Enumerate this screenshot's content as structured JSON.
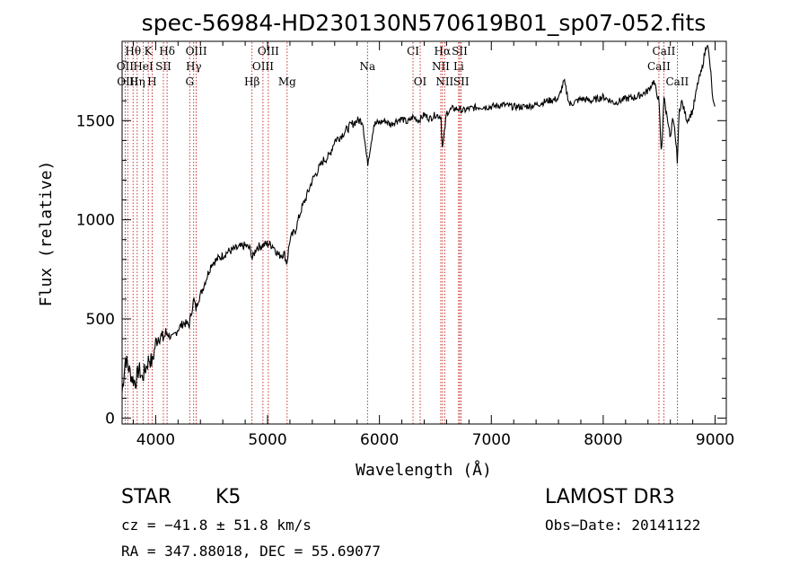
{
  "chart_data": {
    "type": "line",
    "title": "spec-56984-HD230130N570619B01_sp07-052.fits",
    "xlabel": "Wavelength (Å)",
    "ylabel": "Flux (relative)",
    "xlim": [
      3700,
      9100
    ],
    "ylim": [
      -30,
      1900
    ],
    "xticks": [
      4000,
      5000,
      6000,
      7000,
      8000,
      9000
    ],
    "yticks": [
      0,
      500,
      1000,
      1500
    ],
    "series": [
      {
        "name": "flux",
        "x": [
          3700,
          3730,
          3760,
          3790,
          3820,
          3850,
          3880,
          3910,
          3940,
          3970,
          4000,
          4030,
          4060,
          4100,
          4150,
          4200,
          4250,
          4300,
          4340,
          4360,
          4380,
          4400,
          4450,
          4500,
          4550,
          4600,
          4650,
          4700,
          4750,
          4800,
          4850,
          4861,
          4900,
          4950,
          5000,
          5050,
          5100,
          5150,
          5172,
          5200,
          5250,
          5300,
          5350,
          5400,
          5450,
          5500,
          5550,
          5600,
          5650,
          5700,
          5750,
          5800,
          5850,
          5893,
          5950,
          6000,
          6050,
          6100,
          6150,
          6200,
          6250,
          6300,
          6350,
          6400,
          6450,
          6500,
          6550,
          6563,
          6600,
          6650,
          6700,
          6750,
          6800,
          6900,
          7000,
          7100,
          7200,
          7300,
          7400,
          7500,
          7600,
          7650,
          7700,
          7800,
          7900,
          8000,
          8100,
          8200,
          8300,
          8400,
          8450,
          8498,
          8520,
          8542,
          8560,
          8580,
          8600,
          8620,
          8640,
          8662,
          8680,
          8700,
          8750,
          8800,
          8850,
          8880,
          8900,
          8930,
          8960,
          8980,
          9000
        ],
        "y": [
          130,
          300,
          250,
          200,
          180,
          250,
          200,
          250,
          300,
          280,
          380,
          420,
          400,
          430,
          400,
          450,
          480,
          470,
          600,
          550,
          600,
          620,
          700,
          780,
          800,
          820,
          840,
          850,
          860,
          870,
          850,
          800,
          860,
          870,
          880,
          870,
          820,
          830,
          780,
          900,
          950,
          1050,
          1120,
          1200,
          1250,
          1300,
          1320,
          1400,
          1420,
          1450,
          1480,
          1500,
          1500,
          1280,
          1480,
          1490,
          1500,
          1480,
          1500,
          1510,
          1490,
          1520,
          1500,
          1530,
          1510,
          1530,
          1520,
          1350,
          1540,
          1560,
          1560,
          1550,
          1560,
          1570,
          1570,
          1580,
          1570,
          1570,
          1580,
          1600,
          1610,
          1700,
          1580,
          1610,
          1600,
          1620,
          1590,
          1610,
          1620,
          1650,
          1700,
          1600,
          1320,
          1620,
          1550,
          1500,
          1400,
          1500,
          1450,
          1300,
          1550,
          1600,
          1500,
          1550,
          1700,
          1750,
          1820,
          1900,
          1750,
          1600,
          1550
        ]
      }
    ],
    "lines": [
      {
        "label": "Hθ",
        "wl": 3798,
        "row": 0
      },
      {
        "label": "K",
        "wl": 3934,
        "row": 0
      },
      {
        "label": "Hδ",
        "wl": 4102,
        "row": 0
      },
      {
        "label": "OIII",
        "wl": 4363,
        "row": 0
      },
      {
        "label": "OIII",
        "wl": 5007,
        "row": 0
      },
      {
        "label": "CI",
        "wl": 6300,
        "row": 0
      },
      {
        "label": "Hα",
        "wl": 6563,
        "row": 0
      },
      {
        "label": "SII",
        "wl": 6717,
        "row": 0
      },
      {
        "label": "CaII",
        "wl": 8542,
        "row": 0
      },
      {
        "label": "OII",
        "wl": 3727,
        "row": 1
      },
      {
        "label": "HeI",
        "wl": 3889,
        "row": 1
      },
      {
        "label": "SII",
        "wl": 4069,
        "row": 1
      },
      {
        "label": "Hγ",
        "wl": 4340,
        "row": 1
      },
      {
        "label": "OIII",
        "wl": 4959,
        "row": 1
      },
      {
        "label": "Na",
        "wl": 5893,
        "row": 1
      },
      {
        "label": "NII",
        "wl": 6548,
        "row": 1
      },
      {
        "label": "Li",
        "wl": 6708,
        "row": 1
      },
      {
        "label": "CaII",
        "wl": 8498,
        "row": 1
      },
      {
        "label": "OIII",
        "wl": 3750,
        "row": 2
      },
      {
        "label": "Hη",
        "wl": 3835,
        "row": 2
      },
      {
        "label": "H",
        "wl": 3968,
        "row": 2
      },
      {
        "label": "G",
        "wl": 4304,
        "row": 2
      },
      {
        "label": "Hβ",
        "wl": 4861,
        "row": 2
      },
      {
        "label": "Mg",
        "wl": 5175,
        "row": 2
      },
      {
        "label": "OI",
        "wl": 6364,
        "row": 2
      },
      {
        "label": "NII",
        "wl": 6583,
        "row": 2
      },
      {
        "label": "SII",
        "wl": 6731,
        "row": 2
      },
      {
        "label": "CaII",
        "wl": 8662,
        "row": 2
      }
    ]
  },
  "info": {
    "class": "STAR",
    "subclass": "K5",
    "survey": "LAMOST DR3",
    "cz": "cz = −41.8 ± 51.8 km/s",
    "obs_date": "Obs−Date: 20141122",
    "radec": "RA = 347.88018, DEC =  55.69077"
  }
}
